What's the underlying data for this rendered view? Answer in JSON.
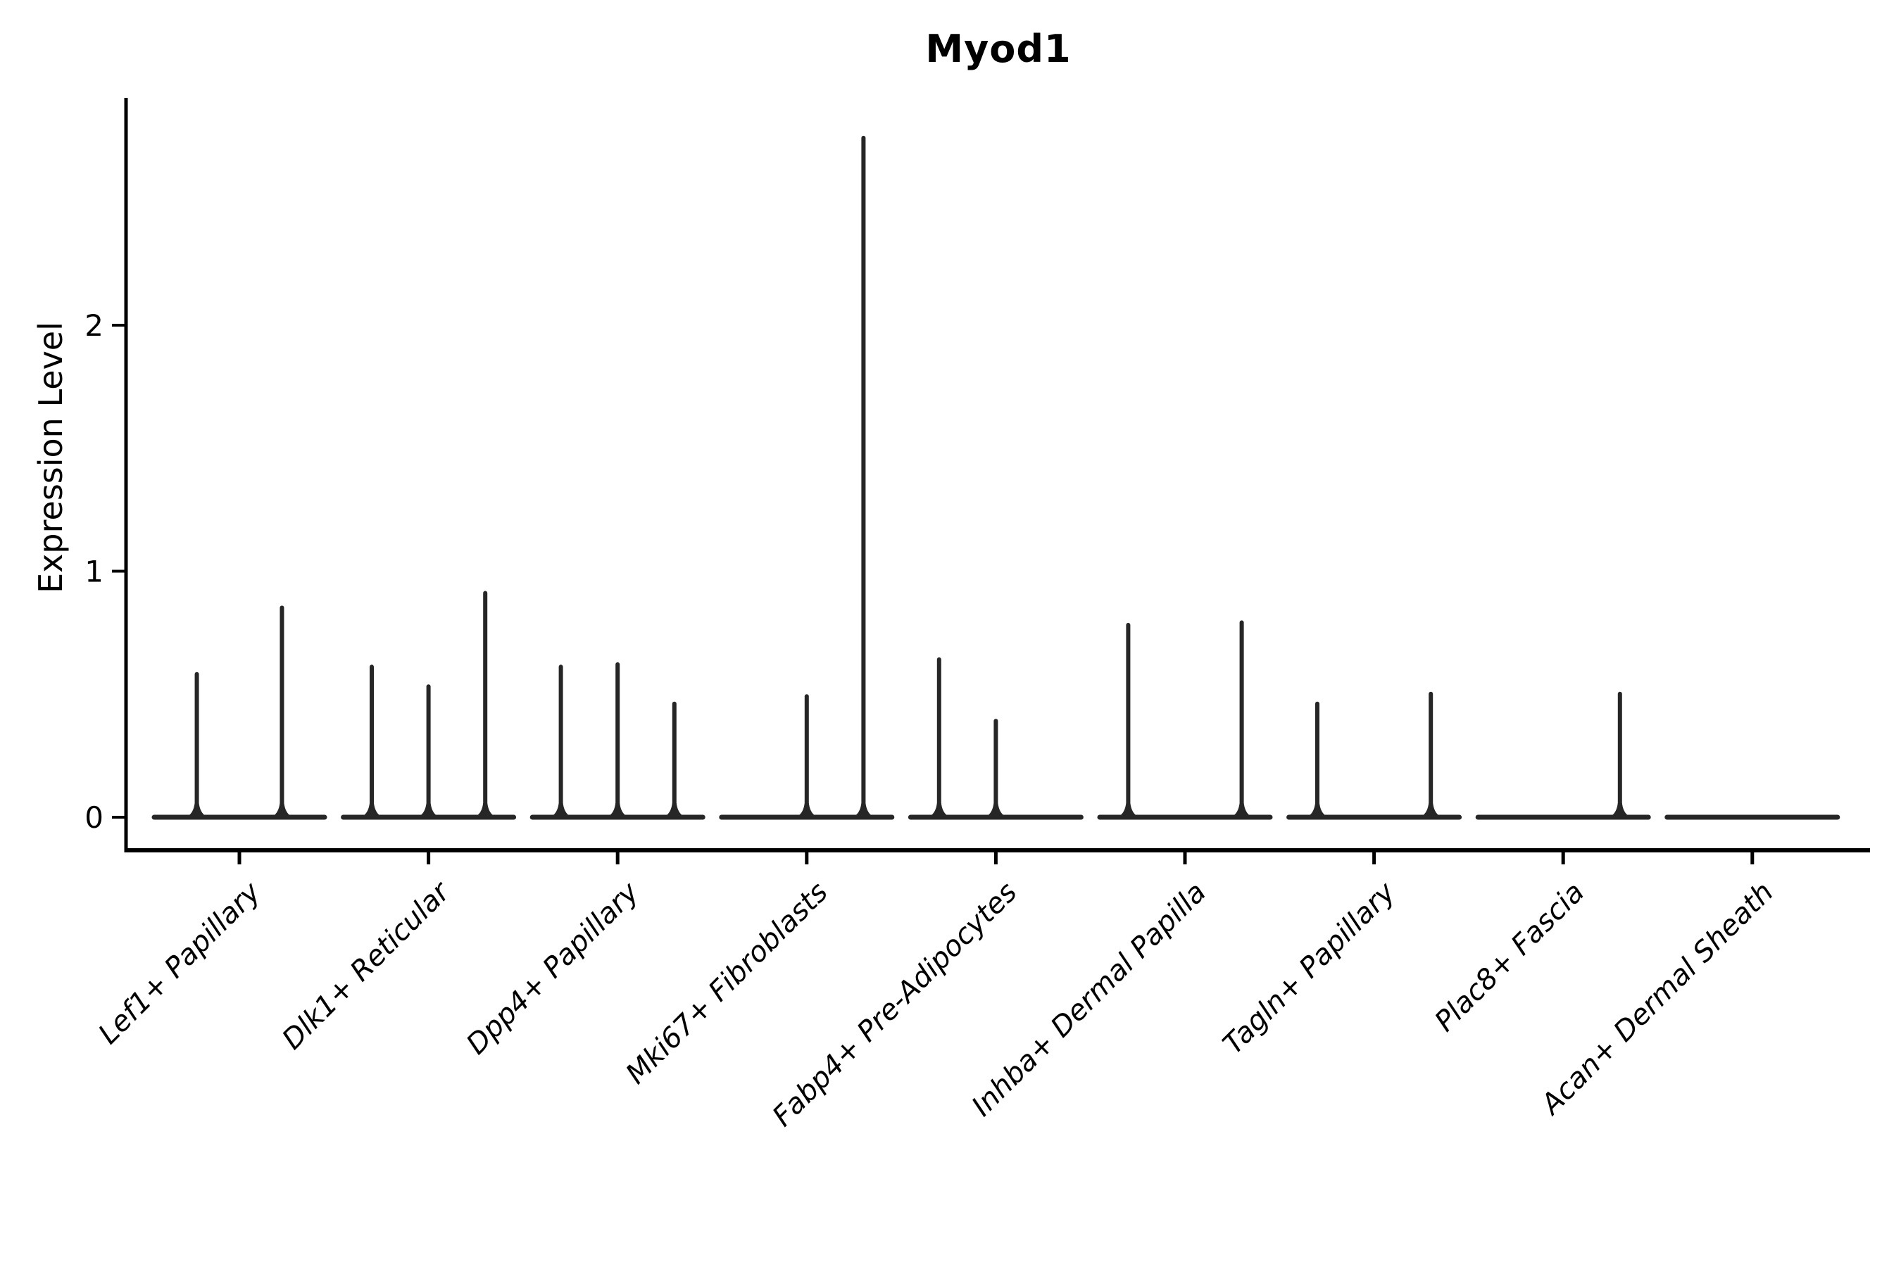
{
  "title": "Myod1",
  "ylabel": "Expression Level",
  "chart_data": {
    "type": "violin",
    "title": "Myod1",
    "xlabel": "",
    "ylabel": "Expression Level",
    "ylim": [
      0,
      2.92
    ],
    "y_ticks": [
      "0",
      "1",
      "2"
    ],
    "grid": false,
    "legend": "none",
    "description": "Grouped violin plot of Myod1 expression; most cells at 0 so violins collapse to flat baselines with thin spikes up to the max expression of each sub-violin.",
    "categories": [
      {
        "label": "Lef1+ Papillary",
        "violins": [
          {
            "pos": -0.75,
            "max": 0.59
          },
          {
            "pos": 0.75,
            "max": 0.86
          }
        ]
      },
      {
        "label": "Dlk1+ Reticular",
        "violins": [
          {
            "pos": -1,
            "max": 0.62
          },
          {
            "pos": 0,
            "max": 0.54
          },
          {
            "pos": 1,
            "max": 0.92
          }
        ]
      },
      {
        "label": "Dpp4+ Papillary",
        "violins": [
          {
            "pos": -1,
            "max": 0.62
          },
          {
            "pos": 0,
            "max": 0.63
          },
          {
            "pos": 1,
            "max": 0.47
          }
        ]
      },
      {
        "label": "Mki67+ Fibroblasts",
        "violins": [
          {
            "pos": -1,
            "max": 0
          },
          {
            "pos": 0,
            "max": 0.5
          },
          {
            "pos": 1,
            "max": 2.77
          }
        ]
      },
      {
        "label": "Fabp4+ Pre-Adipocytes",
        "violins": [
          {
            "pos": -1,
            "max": 0.65
          },
          {
            "pos": 0,
            "max": 0.4
          },
          {
            "pos": 1,
            "max": 0
          }
        ]
      },
      {
        "label": "Inhba+ Dermal Papilla",
        "violins": [
          {
            "pos": -1,
            "max": 0.79
          },
          {
            "pos": 0,
            "max": 0
          },
          {
            "pos": 1,
            "max": 0.8
          }
        ]
      },
      {
        "label": "Tagln+ Papillary",
        "violins": [
          {
            "pos": -1,
            "max": 0.47
          },
          {
            "pos": 0,
            "max": 0
          },
          {
            "pos": 1,
            "max": 0.51
          }
        ]
      },
      {
        "label": "Plac8+ Fascia",
        "violins": [
          {
            "pos": -1,
            "max": 0
          },
          {
            "pos": 0,
            "max": 0
          },
          {
            "pos": 1,
            "max": 0.51
          }
        ]
      },
      {
        "label": "Acan+ Dermal Sheath",
        "violins": [
          {
            "pos": -1,
            "max": 0
          },
          {
            "pos": 0,
            "max": 0
          },
          {
            "pos": 1,
            "max": 0
          }
        ]
      }
    ],
    "colors": {
      "violin": "#262626",
      "axis": "#000000"
    }
  }
}
